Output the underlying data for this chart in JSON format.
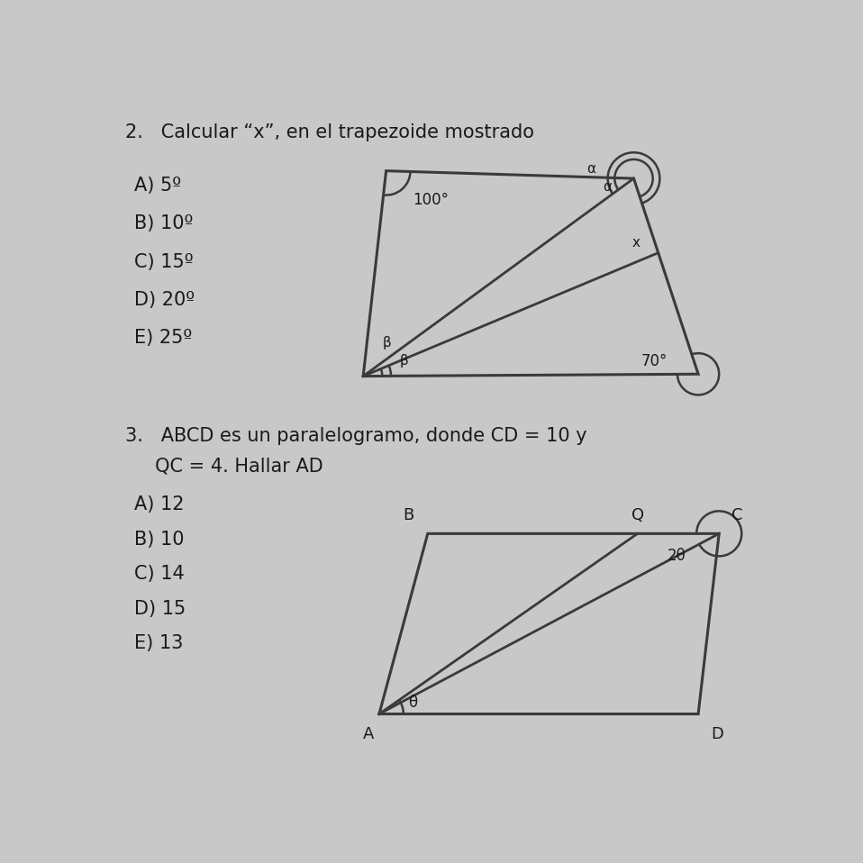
{
  "bg_color": "#c8c8c8",
  "title1": "2.   Calcular “x”, en el trapezoide mostrado",
  "title2_line1": "3.   ABCD es un paralelogramo, donde CD = 10 y",
  "title2_line2": "     QC = 4. Hallar AD",
  "choices1": [
    "A) 5º",
    "B) 10º",
    "C) 15º",
    "D) 20º",
    "E) 25º"
  ],
  "choices2": [
    "A) 12",
    "B) 10",
    "C) 14",
    "D) 15",
    "E) 13"
  ],
  "trap_angle_100": "100°",
  "trap_angle_70": "70°",
  "line_color": "#3a3a3a",
  "text_color": "#1a1a1a",
  "bg_text_color": "#555555"
}
